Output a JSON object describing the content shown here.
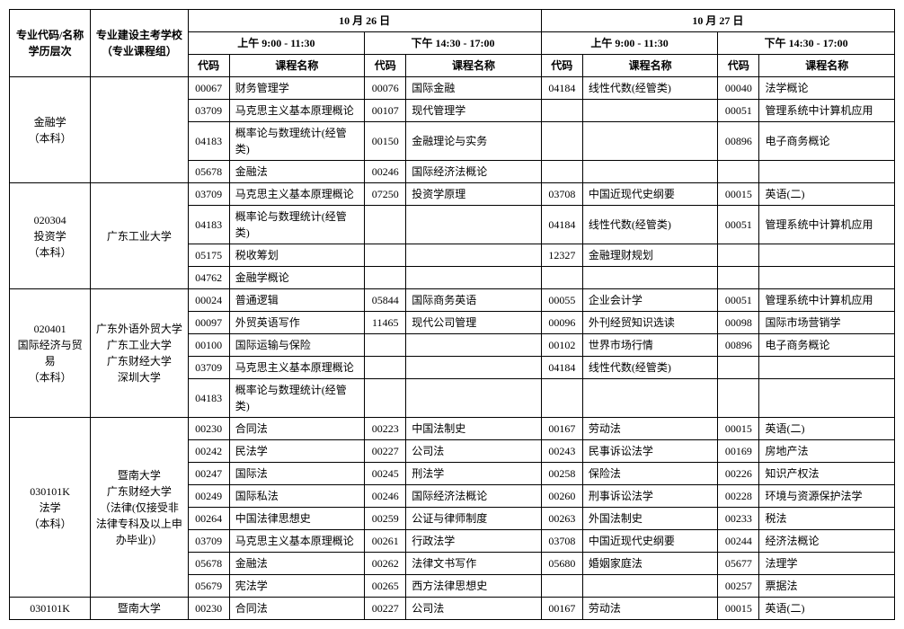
{
  "header": {
    "col_major": "专业代码/名称\n学历层次",
    "col_school": "专业建设主考学校\n（专业课程组）",
    "day1": "10 月 26 日",
    "day2": "10 月 27 日",
    "am": "上午  9:00 - 11:30",
    "pm": "下午  14:30 - 17:00",
    "code": "代码",
    "course": "课程名称"
  },
  "majors": [
    {
      "major": "金融学\n（本科）",
      "school": "",
      "rows": [
        [
          "00067",
          "财务管理学",
          "00076",
          "国际金融",
          "04184",
          "线性代数(经管类)",
          "00040",
          "法学概论"
        ],
        [
          "03709",
          "马克思主义基本原理概论",
          "00107",
          "现代管理学",
          "",
          "",
          "00051",
          "管理系统中计算机应用"
        ],
        [
          "04183",
          "概率论与数理统计(经管类)",
          "00150",
          "金融理论与实务",
          "",
          "",
          "00896",
          "电子商务概论"
        ],
        [
          "05678",
          "金融法",
          "00246",
          "国际经济法概论",
          "",
          "",
          "",
          ""
        ]
      ]
    },
    {
      "major": "020304\n投资学\n（本科）",
      "school": "广东工业大学",
      "rows": [
        [
          "03709",
          "马克思主义基本原理概论",
          "07250",
          "投资学原理",
          "03708",
          "中国近现代史纲要",
          "00015",
          "英语(二)"
        ],
        [
          "04183",
          "概率论与数理统计(经管类)",
          "",
          "",
          "04184",
          "线性代数(经管类)",
          "00051",
          "管理系统中计算机应用"
        ],
        [
          "05175",
          "税收筹划",
          "",
          "",
          "12327",
          "金融理财规划",
          "",
          ""
        ],
        [
          "04762",
          "金融学概论",
          "",
          "",
          "",
          "",
          "",
          ""
        ]
      ]
    },
    {
      "major": "020401\n国际经济与贸易\n（本科）",
      "school": "广东外语外贸大学\n广东工业大学\n广东财经大学\n深圳大学",
      "rows": [
        [
          "00024",
          "普通逻辑",
          "05844",
          "国际商务英语",
          "00055",
          "企业会计学",
          "00051",
          "管理系统中计算机应用"
        ],
        [
          "00097",
          "外贸英语写作",
          "11465",
          "现代公司管理",
          "00096",
          "外刊经贸知识选读",
          "00098",
          "国际市场营销学"
        ],
        [
          "00100",
          "国际运输与保险",
          "",
          "",
          "00102",
          "世界市场行情",
          "00896",
          "电子商务概论"
        ],
        [
          "03709",
          "马克思主义基本原理概论",
          "",
          "",
          "04184",
          "线性代数(经管类)",
          "",
          ""
        ],
        [
          "04183",
          "概率论与数理统计(经管类)",
          "",
          "",
          "",
          "",
          "",
          ""
        ]
      ]
    },
    {
      "major": "030101K\n法学\n（本科）",
      "school": "暨南大学\n广东财经大学\n（法律(仅接受非法律专科及以上申办毕业)）",
      "rows": [
        [
          "00230",
          "合同法",
          "00223",
          "中国法制史",
          "00167",
          "劳动法",
          "00015",
          "英语(二)"
        ],
        [
          "00242",
          "民法学",
          "00227",
          "公司法",
          "00243",
          "民事诉讼法学",
          "00169",
          "房地产法"
        ],
        [
          "00247",
          "国际法",
          "00245",
          "刑法学",
          "00258",
          "保险法",
          "00226",
          "知识产权法"
        ],
        [
          "00249",
          "国际私法",
          "00246",
          "国际经济法概论",
          "00260",
          "刑事诉讼法学",
          "00228",
          "环境与资源保护法学"
        ],
        [
          "00264",
          "中国法律思想史",
          "00259",
          "公证与律师制度",
          "00263",
          "外国法制史",
          "00233",
          "税法"
        ],
        [
          "03709",
          "马克思主义基本原理概论",
          "00261",
          "行政法学",
          "03708",
          "中国近现代史纲要",
          "00244",
          "经济法概论"
        ],
        [
          "05678",
          "金融法",
          "00262",
          "法律文书写作",
          "05680",
          "婚姻家庭法",
          "05677",
          "法理学"
        ],
        [
          "05679",
          "宪法学",
          "00265",
          "西方法律思想史",
          "",
          "",
          "00257",
          "票据法"
        ]
      ]
    },
    {
      "major": "030101K",
      "school": "暨南大学",
      "rows": [
        [
          "00230",
          "合同法",
          "00227",
          "公司法",
          "00167",
          "劳动法",
          "00015",
          "英语(二)"
        ]
      ]
    }
  ]
}
